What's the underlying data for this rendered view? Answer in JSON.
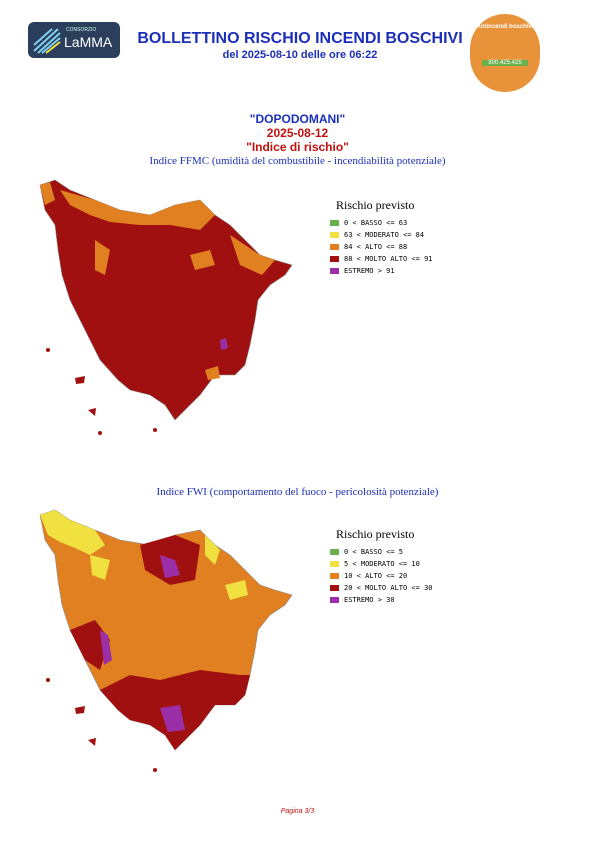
{
  "header": {
    "logo_small": "CONSORZIO",
    "logo_name": "LaMMA",
    "title": "BOLLETTINO RISCHIO INCENDI BOSCHIVI",
    "subtitle": "del 2025-08-10 delle ore 06:22",
    "badge_text": "Antincendi boschivi",
    "badge_phone": "800.425.425"
  },
  "section": {
    "day": "\"DOPODOMANI\"",
    "date": "2025-08-12",
    "label": "\"Indice di rischio\""
  },
  "maps": [
    {
      "caption": "Indice FFMC (umidità del combustibile - incendiabilità potenziale)",
      "legend_title": "Rischio previsto",
      "legend": [
        {
          "label": "0 < BASSO <= 63",
          "color": "#6ab04c"
        },
        {
          "label": "63 < MODERATO <= 84",
          "color": "#f0e040"
        },
        {
          "label": "84 < ALTO <= 88",
          "color": "#e08020"
        },
        {
          "label": "88 < MOLTO ALTO <= 91",
          "color": "#a01010"
        },
        {
          "label": "ESTREMO > 91",
          "color": "#9b2fa8"
        }
      ]
    },
    {
      "caption": "Indice FWI (comportamento del fuoco - pericolosità potenziale)",
      "legend_title": "Rischio previsto",
      "legend": [
        {
          "label": "0 < BASSO <= 5",
          "color": "#6ab04c"
        },
        {
          "label": "5 < MODERATO <= 10",
          "color": "#f0e040"
        },
        {
          "label": "10 < ALTO <= 20",
          "color": "#e08020"
        },
        {
          "label": "20 < MOLTO ALTO <= 30",
          "color": "#a01010"
        },
        {
          "label": "ESTREMO > 30",
          "color": "#9b2fa8"
        }
      ]
    }
  ],
  "footer": {
    "page": "Pagina 3/3"
  }
}
